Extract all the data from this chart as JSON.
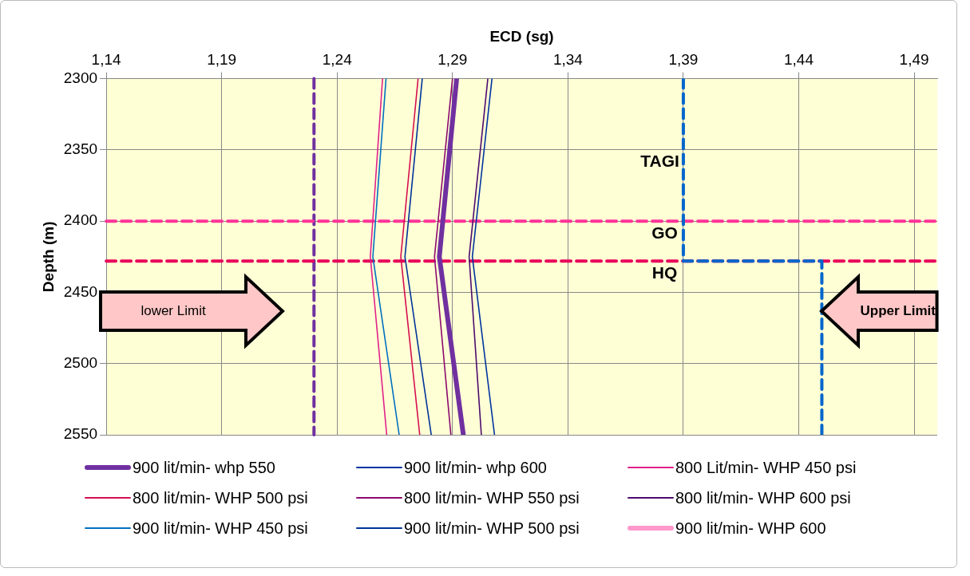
{
  "chart_data": {
    "type": "line",
    "xlabel": "ECD (sg)",
    "ylabel": "Depth (m)",
    "xlim": [
      1.14,
      1.5
    ],
    "xticks": [
      {
        "value": 1.14,
        "label": "1,14"
      },
      {
        "value": 1.19,
        "label": "1,19"
      },
      {
        "value": 1.24,
        "label": "1,24"
      },
      {
        "value": 1.29,
        "label": "1,29"
      },
      {
        "value": 1.34,
        "label": "1,34"
      },
      {
        "value": 1.39,
        "label": "1,39"
      },
      {
        "value": 1.44,
        "label": "1,44"
      },
      {
        "value": 1.49,
        "label": "1,49"
      }
    ],
    "ylim": [
      2550,
      2300
    ],
    "yticks": [
      2300,
      2350,
      2400,
      2450,
      2500,
      2550
    ],
    "grid": true,
    "legend": "bottom",
    "marker": "none",
    "series": [
      {
        "name": "900 lit/min- whp 550",
        "color": "#7030a0",
        "x": [
          1.2918,
          1.2843,
          1.2947
        ],
        "values": [
          2300,
          2425,
          2550
        ]
      },
      {
        "name": "900 lit/min- whp 600",
        "color": "#0033a0",
        "x": [
          1.3071,
          1.2986,
          1.3082
        ],
        "values": [
          2300,
          2425,
          2550
        ]
      },
      {
        "name": "800 Lit/min- WHP 450 psi",
        "color": "#e0218a",
        "x": [
          1.2597,
          1.2544,
          1.2615
        ],
        "values": [
          2300,
          2425,
          2550
        ]
      },
      {
        "name": "800 lit/min- WHP 500 psi",
        "color": "#d40f4f",
        "x": [
          1.2751,
          1.2676,
          1.2758
        ],
        "values": [
          2300,
          2425,
          2550
        ]
      },
      {
        "name": "800 lit/min- WHP 550 psi",
        "color": "#8b0a6e",
        "x": [
          1.29,
          1.2822,
          1.2893
        ],
        "values": [
          2300,
          2425,
          2550
        ]
      },
      {
        "name": "800 lit/min- WHP 600 psi",
        "color": "#4b0c6e",
        "x": [
          1.3053,
          1.2972,
          1.3025
        ],
        "values": [
          2300,
          2425,
          2550
        ]
      },
      {
        "name": "900 lit/min- WHP 450 psi",
        "color": "#0070c0",
        "x": [
          1.2612,
          1.2555,
          1.2669
        ],
        "values": [
          2300,
          2425,
          2550
        ]
      },
      {
        "name": "900 lit/min- WHP 500 psi",
        "color": "#003399",
        "x": [
          1.2769,
          1.2694,
          1.2808
        ],
        "values": [
          2300,
          2425,
          2550
        ]
      },
      {
        "name": "900 lit/min- WHP 600",
        "color": "#ff99cc"
      },
      {
        "name": "TAGI",
        "color": "#0066cc",
        "line_style": "dashed",
        "x": [
          1.39,
          1.39,
          1.45,
          1.45
        ],
        "values": [
          2300,
          2428,
          2428,
          2550
        ]
      }
    ],
    "ref_lines": [
      {
        "axis": "x",
        "value": 1.23,
        "color": "#7030a0",
        "line_style": "dashed"
      },
      {
        "axis": "y",
        "value": 2400,
        "label": "GO",
        "color": "#ff3399",
        "line_style": "dashed"
      },
      {
        "axis": "y",
        "value": 2428,
        "label": "HQ",
        "color": "#e8005a",
        "line_style": "dashed"
      }
    ],
    "annotations": [
      "lower Limit",
      {
        "text": "Upper Limit",
        "x": 1.45,
        "y": 2463
      }
    ]
  }
}
